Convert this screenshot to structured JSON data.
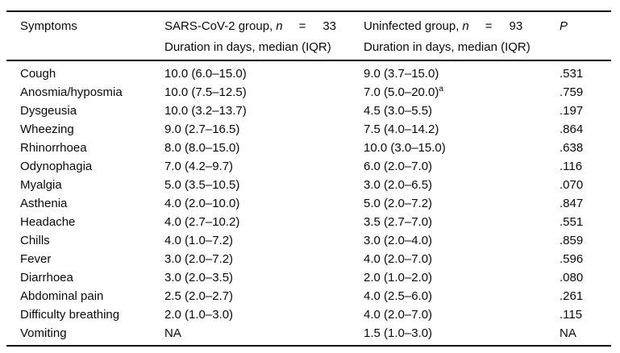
{
  "table": {
    "header": {
      "symptoms_label": "Symptoms",
      "group1": {
        "prefix": "SARS-CoV-2 group,",
        "n_symbol": "n",
        "eq": "=",
        "count": "33",
        "subtitle": "Duration in days, median (IQR)"
      },
      "group2": {
        "prefix": "Uninfected group,",
        "n_symbol": "n",
        "eq": "=",
        "count": "93",
        "subtitle": "Duration in days, median (IQR)"
      },
      "p_label": "P"
    },
    "rows": [
      {
        "symptom": "Cough",
        "sars": "10.0 (6.0–15.0)",
        "uninfected": "9.0 (3.7–15.0)",
        "uninfected_sup": "",
        "p": ".531"
      },
      {
        "symptom": "Anosmia/hyposmia",
        "sars": "10.0 (7.5–12.5)",
        "uninfected": "7.0 (5.0–20.0)",
        "uninfected_sup": "a",
        "p": ".759"
      },
      {
        "symptom": "Dysgeusia",
        "sars": "10.0 (3.2–13.7)",
        "uninfected": "4.5 (3.0–5.5)",
        "uninfected_sup": "",
        "p": ".197"
      },
      {
        "symptom": "Wheezing",
        "sars": "9.0 (2.7–16.5)",
        "uninfected": "7.5 (4.0–14.2)",
        "uninfected_sup": "",
        "p": ".864"
      },
      {
        "symptom": "Rhinorrhoea",
        "sars": "8.0 (8.0–15.0)",
        "uninfected": "10.0 (3.0–15.0)",
        "uninfected_sup": "",
        "p": ".638"
      },
      {
        "symptom": "Odynophagia",
        "sars": "7.0 (4.2–9.7)",
        "uninfected": "6.0 (2.0–7.0)",
        "uninfected_sup": "",
        "p": ".116"
      },
      {
        "symptom": "Myalgia",
        "sars": "5.0 (3.5–10.5)",
        "uninfected": "3.0 (2.0–6.5)",
        "uninfected_sup": "",
        "p": ".070"
      },
      {
        "symptom": "Asthenia",
        "sars": "4.0 (2.0–10.0)",
        "uninfected": "5.0 (2.0–7.2)",
        "uninfected_sup": "",
        "p": ".847"
      },
      {
        "symptom": "Headache",
        "sars": "4.0 (2.7–10.2)",
        "uninfected": "3.5 (2.7–7.0)",
        "uninfected_sup": "",
        "p": ".551"
      },
      {
        "symptom": "Chills",
        "sars": "4.0 (1.0–7.2)",
        "uninfected": "3.0 (2.0–4.0)",
        "uninfected_sup": "",
        "p": ".859"
      },
      {
        "symptom": "Fever",
        "sars": "3.0 (2.0–7.2)",
        "uninfected": "4.0 (2.0–7.0)",
        "uninfected_sup": "",
        "p": ".596"
      },
      {
        "symptom": "Diarrhoea",
        "sars": "3.0 (2.0–3.5)",
        "uninfected": "2.0 (1.0–2.0)",
        "uninfected_sup": "",
        "p": ".080"
      },
      {
        "symptom": "Abdominal pain",
        "sars": "2.5 (2.0–2.7)",
        "uninfected": "4.0 (2.5–6.0)",
        "uninfected_sup": "",
        "p": ".261"
      },
      {
        "symptom": "Difficulty breathing",
        "sars": "2.0 (1.0–3.0)",
        "uninfected": "4.0 (2.0–7.0)",
        "uninfected_sup": "",
        "p": ".115"
      },
      {
        "symptom": "Vomiting",
        "sars": "NA",
        "uninfected": "1.5 (1.0–3.0)",
        "uninfected_sup": "",
        "p": "NA"
      }
    ],
    "colors": {
      "text": "#0a0a0a",
      "rule": "#000000",
      "background": "#ffffff"
    }
  }
}
